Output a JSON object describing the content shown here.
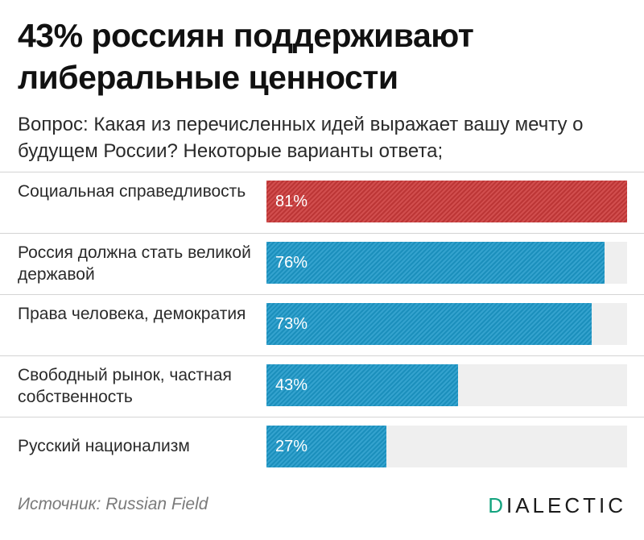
{
  "header": {
    "title": "43% россиян поддерживают либеральные ценности",
    "subtitle": "Вопрос: Какая из перечисленных идей выражает вашу мечту о будущем России? Некоторые варианты ответа;"
  },
  "chart_data": {
    "type": "bar",
    "orientation": "horizontal",
    "title": "43% россиян поддерживают либеральные ценности",
    "subtitle": "Вопрос: Какая из перечисленных идей выражает вашу мечту о будущем России? Некоторые варианты ответа;",
    "categories": [
      "Социальная справедливость",
      "Россия должна стать великой державой",
      "Права человека, демократия",
      "Свободный рынок, частная собственность",
      "Русский национализм"
    ],
    "values": [
      81,
      76,
      73,
      43,
      27
    ],
    "value_labels": [
      "81%",
      "76%",
      "73%",
      "43%",
      "27%"
    ],
    "xlim": [
      0,
      81
    ],
    "unit": "%",
    "highlight_index": 0,
    "colors": {
      "bar": "#1d98c8",
      "highlight": "#cc3a3a",
      "track": "#efefef"
    }
  },
  "footer": {
    "source": "Источник: Russian Field",
    "logo_first": "D",
    "logo_rest": "IALECTIC"
  },
  "colors": {
    "logo_accent": "#14a37f"
  }
}
